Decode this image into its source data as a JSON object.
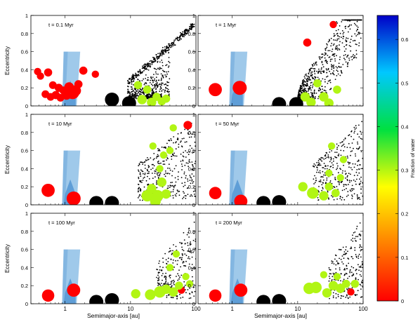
{
  "figure": {
    "ylabel": "Eccentricity",
    "xlabel": "Semimajor-axis [au]",
    "colorbar_label": "Fraction of water",
    "colorbar_ticks": [
      "0",
      "0.1",
      "0.2",
      "0.3",
      "0.4",
      "0.5",
      "0.6"
    ]
  },
  "colors": {
    "colorscale": [
      "#ff0000",
      "#ff8000",
      "#ffff00",
      "#00e040",
      "#00c8ff",
      "#0000c8"
    ],
    "habitable_zone_outer": "#9fc9ea",
    "habitable_zone_inner": "#4f93d2",
    "dry_embryo": "#ff2020",
    "giant_planet": "#000000",
    "test_particle": "#000000"
  },
  "chart_data": [
    {
      "type": "scatter",
      "title": "t = 0.1 Myr",
      "xscale": "log",
      "xlim": [
        0.3,
        100
      ],
      "ylim": [
        0,
        1
      ],
      "xticks": [
        "1",
        "10",
        "100"
      ],
      "yticks": [
        "0",
        "0.2",
        "0.4",
        "0.6",
        "0.8",
        "1"
      ],
      "embryos": [
        {
          "a": 0.38,
          "e": 0.38,
          "water": 0,
          "mass": 1
        },
        {
          "a": 0.42,
          "e": 0.33,
          "water": 0,
          "mass": 1
        },
        {
          "a": 0.55,
          "e": 0.37,
          "water": 0,
          "mass": 1.2
        },
        {
          "a": 0.5,
          "e": 0.13,
          "water": 0,
          "mass": 1.1
        },
        {
          "a": 0.6,
          "e": 0.1,
          "water": 0,
          "mass": 1.1
        },
        {
          "a": 0.65,
          "e": 0.23,
          "water": 0,
          "mass": 1.1
        },
        {
          "a": 0.72,
          "e": 0.12,
          "water": 0,
          "mass": 1.2
        },
        {
          "a": 0.8,
          "e": 0.2,
          "water": 0,
          "mass": 1.2
        },
        {
          "a": 0.85,
          "e": 0.09,
          "water": 0,
          "mass": 1.1
        },
        {
          "a": 0.95,
          "e": 0.17,
          "water": 0,
          "mass": 1.2
        },
        {
          "a": 1.05,
          "e": 0.12,
          "water": 0,
          "mass": 1.5
        },
        {
          "a": 1.15,
          "e": 0.21,
          "water": 0,
          "mass": 1.5
        },
        {
          "a": 1.3,
          "e": 0.15,
          "water": 0,
          "mass": 2.5
        },
        {
          "a": 1.45,
          "e": 0.17,
          "water": 0,
          "mass": 1.8
        },
        {
          "a": 1.6,
          "e": 0.24,
          "water": 0,
          "mass": 1.2
        },
        {
          "a": 1.9,
          "e": 0.39,
          "water": 0,
          "mass": 1.2
        },
        {
          "a": 2.9,
          "e": 0.35,
          "water": 0,
          "mass": 1
        },
        {
          "a": 5.2,
          "e": 0.07,
          "water": -1,
          "mass": 5
        },
        {
          "a": 9.5,
          "e": 0.03,
          "water": -1,
          "mass": 5
        },
        {
          "a": 13,
          "e": 0.23,
          "water": 0.3,
          "mass": 1.2
        },
        {
          "a": 15,
          "e": 0.07,
          "water": 0.3,
          "mass": 1.5
        },
        {
          "a": 18,
          "e": 0.18,
          "water": 0.3,
          "mass": 1.2
        },
        {
          "a": 21,
          "e": 0.04,
          "water": 0.3,
          "mass": 1.5
        },
        {
          "a": 25,
          "e": 0.1,
          "water": 0.3,
          "mass": 1.2
        },
        {
          "a": 30,
          "e": 0.05,
          "water": 0.3,
          "mass": 1.2
        },
        {
          "a": 35,
          "e": 0.08,
          "water": 0.3,
          "mass": 1.2
        }
      ]
    },
    {
      "type": "scatter",
      "title": "t = 1 Myr",
      "xscale": "log",
      "xlim": [
        0.3,
        100
      ],
      "ylim": [
        0,
        1
      ],
      "xticks": [
        "1",
        "10",
        "100"
      ],
      "yticks": [
        "0",
        "0.2",
        "0.4",
        "0.6",
        "0.8",
        "1"
      ],
      "embryos": [
        {
          "a": 0.55,
          "e": 0.18,
          "water": 0,
          "mass": 2.4
        },
        {
          "a": 1.3,
          "e": 0.2,
          "water": 0,
          "mass": 2.6
        },
        {
          "a": 5.2,
          "e": 0.02,
          "water": -1,
          "mass": 5
        },
        {
          "a": 9.5,
          "e": 0.02,
          "water": -1,
          "mass": 5
        },
        {
          "a": 14,
          "e": 0.7,
          "water": 0,
          "mass": 1.2
        },
        {
          "a": 35,
          "e": 0.9,
          "water": 0,
          "mass": 1
        },
        {
          "a": 13,
          "e": 0.1,
          "water": 0.3,
          "mass": 1.5
        },
        {
          "a": 16,
          "e": 0.04,
          "water": 0.3,
          "mass": 1.5
        },
        {
          "a": 20,
          "e": 0.25,
          "water": 0.3,
          "mass": 1.2
        },
        {
          "a": 25,
          "e": 0.1,
          "water": 0.3,
          "mass": 1.5
        },
        {
          "a": 30,
          "e": 0.03,
          "water": 0.3,
          "mass": 1.5
        },
        {
          "a": 40,
          "e": 0.18,
          "water": 0.3,
          "mass": 1.2
        }
      ]
    },
    {
      "type": "scatter",
      "title": "t = 10 Myr",
      "xscale": "log",
      "xlim": [
        0.3,
        100
      ],
      "ylim": [
        0,
        1
      ],
      "xticks": [
        "1",
        "10",
        "100"
      ],
      "yticks": [
        "0",
        "0.2",
        "0.4",
        "0.6",
        "0.8",
        "1"
      ],
      "embryos": [
        {
          "a": 0.55,
          "e": 0.16,
          "water": 0,
          "mass": 2.4
        },
        {
          "a": 1.35,
          "e": 0.07,
          "water": 0,
          "mass": 2.6
        },
        {
          "a": 3.0,
          "e": 0.02,
          "water": -1,
          "mass": 5
        },
        {
          "a": 5.2,
          "e": 0.02,
          "water": -1,
          "mass": 5
        },
        {
          "a": 75,
          "e": 0.88,
          "water": 0,
          "mass": 1.3
        },
        {
          "a": 18,
          "e": 0.1,
          "water": 0.3,
          "mass": 2
        },
        {
          "a": 21,
          "e": 0.18,
          "water": 0.3,
          "mass": 1.5
        },
        {
          "a": 24,
          "e": 0.04,
          "water": 0.3,
          "mass": 1.8
        },
        {
          "a": 26,
          "e": 0.1,
          "water": 0.3,
          "mass": 2
        },
        {
          "a": 30,
          "e": 0.25,
          "water": 0.3,
          "mass": 1.5
        },
        {
          "a": 35,
          "e": 0.12,
          "water": 0.3,
          "mass": 1.5
        },
        {
          "a": 28,
          "e": 0.4,
          "water": 0.3,
          "mass": 1
        },
        {
          "a": 32,
          "e": 0.55,
          "water": 0.3,
          "mass": 1
        },
        {
          "a": 40,
          "e": 0.6,
          "water": 0.3,
          "mass": 1
        },
        {
          "a": 45,
          "e": 0.85,
          "water": 0.3,
          "mass": 1
        },
        {
          "a": 22,
          "e": 0.65,
          "water": 0.3,
          "mass": 1
        }
      ]
    },
    {
      "type": "scatter",
      "title": "t = 50 Myr",
      "xscale": "log",
      "xlim": [
        0.3,
        100
      ],
      "ylim": [
        0,
        1
      ],
      "xticks": [
        "1",
        "10",
        "100"
      ],
      "yticks": [
        "0",
        "0.2",
        "0.4",
        "0.6",
        "0.8",
        "1"
      ],
      "embryos": [
        {
          "a": 0.55,
          "e": 0.13,
          "water": 0,
          "mass": 2.2
        },
        {
          "a": 1.35,
          "e": 0.04,
          "water": 0,
          "mass": 2.4
        },
        {
          "a": 3.0,
          "e": 0.02,
          "water": -1,
          "mass": 5
        },
        {
          "a": 5.2,
          "e": 0.03,
          "water": -1,
          "mass": 5
        },
        {
          "a": 12,
          "e": 0.2,
          "water": 0.3,
          "mass": 1.5
        },
        {
          "a": 17,
          "e": 0.13,
          "water": 0.3,
          "mass": 2
        },
        {
          "a": 25,
          "e": 0.1,
          "water": 0.3,
          "mass": 1.5
        },
        {
          "a": 30,
          "e": 0.2,
          "water": 0.3,
          "mass": 1.2
        },
        {
          "a": 38,
          "e": 0.13,
          "water": 0.3,
          "mass": 1.2
        },
        {
          "a": 30,
          "e": 0.35,
          "water": 0.3,
          "mass": 1
        },
        {
          "a": 45,
          "e": 0.3,
          "water": 0.3,
          "mass": 1
        },
        {
          "a": 33,
          "e": 0.65,
          "water": 0.3,
          "mass": 1
        },
        {
          "a": 50,
          "e": 0.5,
          "water": 0.3,
          "mass": 1
        }
      ]
    },
    {
      "type": "scatter",
      "title": "t = 100 Myr",
      "xscale": "log",
      "xlim": [
        0.3,
        100
      ],
      "ylim": [
        0,
        1
      ],
      "xticks": [
        "1",
        "10",
        "100"
      ],
      "yticks": [
        "0",
        "0.2",
        "0.4",
        "0.6",
        "0.8",
        "1"
      ],
      "embryos": [
        {
          "a": 0.55,
          "e": 0.09,
          "water": 0,
          "mass": 2.2
        },
        {
          "a": 1.35,
          "e": 0.15,
          "water": 0,
          "mass": 2.4
        },
        {
          "a": 3.0,
          "e": 0.02,
          "water": -1,
          "mass": 5
        },
        {
          "a": 5.2,
          "e": 0.04,
          "water": -1,
          "mass": 5
        },
        {
          "a": 60,
          "e": 0.15,
          "water": 0,
          "mass": 1
        },
        {
          "a": 12,
          "e": 0.11,
          "water": 0.3,
          "mass": 1.5
        },
        {
          "a": 20,
          "e": 0.1,
          "water": 0.3,
          "mass": 1.8
        },
        {
          "a": 28,
          "e": 0.13,
          "water": 0.3,
          "mass": 2
        },
        {
          "a": 35,
          "e": 0.16,
          "water": 0.3,
          "mass": 1.5
        },
        {
          "a": 45,
          "e": 0.13,
          "water": 0.3,
          "mass": 1.5
        },
        {
          "a": 55,
          "e": 0.2,
          "water": 0.3,
          "mass": 1.2
        },
        {
          "a": 40,
          "e": 0.4,
          "water": 0.3,
          "mass": 1
        },
        {
          "a": 50,
          "e": 0.55,
          "water": 0.3,
          "mass": 1
        },
        {
          "a": 70,
          "e": 0.3,
          "water": 0.3,
          "mass": 1
        },
        {
          "a": 80,
          "e": 0.22,
          "water": 0.3,
          "mass": 1
        }
      ]
    },
    {
      "type": "scatter",
      "title": "t = 200 Myr",
      "xscale": "log",
      "xlim": [
        0.3,
        100
      ],
      "ylim": [
        0,
        1
      ],
      "xticks": [
        "1",
        "10",
        "100"
      ],
      "yticks": [
        "0",
        "0.2",
        "0.4",
        "0.6",
        "0.8",
        "1"
      ],
      "embryos": [
        {
          "a": 0.55,
          "e": 0.09,
          "water": 0,
          "mass": 2.2
        },
        {
          "a": 1.35,
          "e": 0.15,
          "water": 0,
          "mass": 2.4
        },
        {
          "a": 3.0,
          "e": 0.02,
          "water": -1,
          "mass": 5
        },
        {
          "a": 5.2,
          "e": 0.03,
          "water": -1,
          "mass": 5
        },
        {
          "a": 65,
          "e": 0.13,
          "water": 0,
          "mass": 1
        },
        {
          "a": 15,
          "e": 0.17,
          "water": 0.3,
          "mass": 2
        },
        {
          "a": 19,
          "e": 0.18,
          "water": 0.3,
          "mass": 2
        },
        {
          "a": 28,
          "e": 0.12,
          "water": 0.3,
          "mass": 1.5
        },
        {
          "a": 35,
          "e": 0.2,
          "water": 0.3,
          "mass": 1.5
        },
        {
          "a": 45,
          "e": 0.17,
          "water": 0.3,
          "mass": 1.5
        },
        {
          "a": 55,
          "e": 0.22,
          "water": 0.3,
          "mass": 1.2
        },
        {
          "a": 75,
          "e": 0.22,
          "water": 0.3,
          "mass": 1.2
        },
        {
          "a": 40,
          "e": 0.3,
          "water": 0.3,
          "mass": 1
        },
        {
          "a": 25,
          "e": 0.32,
          "water": 0.3,
          "mass": 1
        }
      ]
    }
  ]
}
